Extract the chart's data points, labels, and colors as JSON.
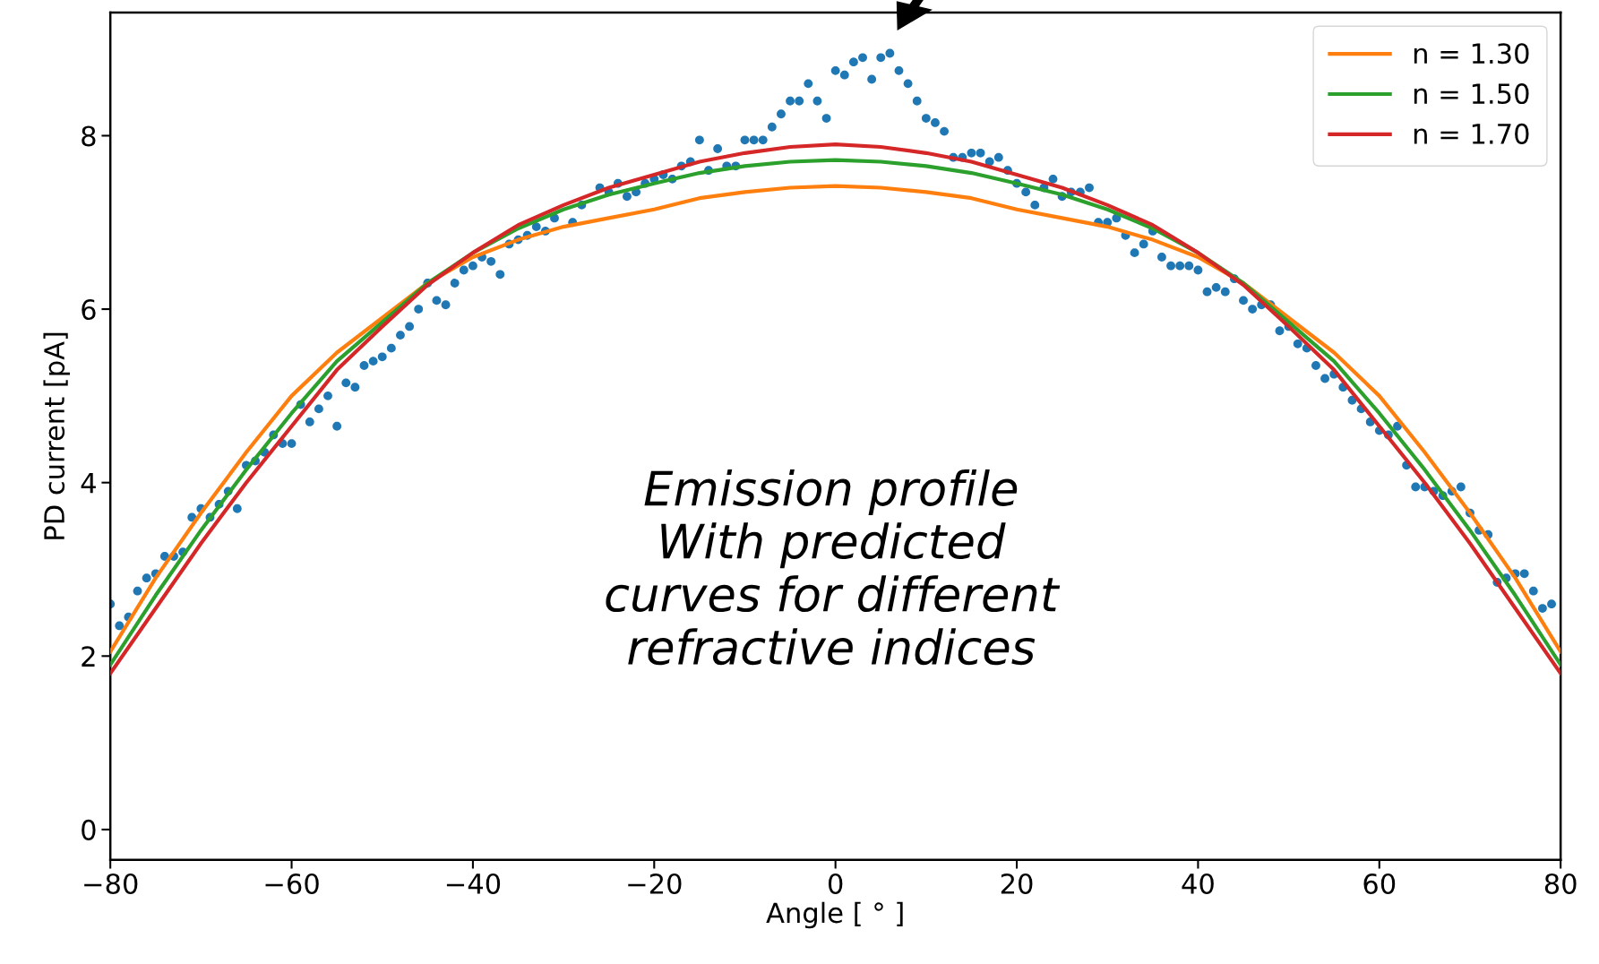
{
  "chart_data": {
    "type": "scatter",
    "xlabel": "Angle [ ° ]",
    "ylabel": "PD current [pA]",
    "xlim": [
      -80,
      80
    ],
    "ylim": [
      -0.35,
      9.42
    ],
    "xticks": [
      -80,
      -60,
      -40,
      -20,
      0,
      20,
      40,
      60,
      80
    ],
    "yticks": [
      0,
      2,
      4,
      6,
      8
    ],
    "legend": "top right",
    "marker": "circle",
    "series": [
      {
        "color": "#1f77b4",
        "x": [
          -80,
          -79,
          -78,
          -77,
          -76,
          -75,
          -74,
          -73,
          -72,
          -71,
          -70,
          -69,
          -68,
          -67,
          -66,
          -65,
          -64,
          -63,
          -62,
          -61,
          -60,
          -59,
          -58,
          -57,
          -56,
          -55,
          -54,
          -53,
          -52,
          -51,
          -50,
          -49,
          -48,
          -47,
          -46,
          -45,
          -44,
          -43,
          -42,
          -41,
          -40,
          -39,
          -38,
          -37,
          -36,
          -35,
          -34,
          -33,
          -32,
          -31,
          -29,
          -28,
          -26,
          -25,
          -24,
          -23,
          -22,
          -21,
          -20,
          -19,
          -18,
          -17,
          -16,
          -15,
          -14,
          -13,
          -12,
          -11,
          -10,
          -9,
          -8,
          -7,
          -6,
          -5,
          -4,
          -3,
          -2,
          -1,
          0,
          1,
          2,
          3,
          4,
          5,
          6,
          7,
          8,
          9,
          10,
          11,
          12,
          13,
          14,
          15,
          16,
          17,
          18,
          19,
          20,
          21,
          22,
          23,
          24,
          25,
          26,
          27,
          28,
          29,
          30,
          31,
          32,
          33,
          34,
          35,
          36,
          37,
          38,
          39,
          40,
          41,
          42,
          43,
          44,
          45,
          46,
          47,
          48,
          49,
          50,
          51,
          52,
          53,
          54,
          55,
          56,
          57,
          58,
          59,
          60,
          61,
          62,
          63,
          64,
          65,
          66,
          67,
          68,
          69,
          70,
          71,
          72,
          73,
          74,
          75,
          76,
          77,
          78,
          79
        ],
        "values": [
          2.6,
          2.35,
          2.45,
          2.75,
          2.9,
          2.95,
          3.15,
          3.15,
          3.2,
          3.6,
          3.7,
          3.6,
          3.75,
          3.9,
          3.7,
          4.2,
          4.25,
          4.35,
          4.55,
          4.45,
          4.45,
          4.9,
          4.7,
          4.85,
          5.0,
          4.65,
          5.15,
          5.1,
          5.35,
          5.4,
          5.45,
          5.55,
          5.7,
          5.8,
          6.0,
          6.3,
          6.1,
          6.05,
          6.3,
          6.45,
          6.5,
          6.6,
          6.55,
          6.4,
          6.75,
          6.8,
          6.85,
          6.95,
          6.9,
          7.05,
          7.0,
          7.2,
          7.4,
          7.35,
          7.45,
          7.3,
          7.35,
          7.45,
          7.5,
          7.55,
          7.5,
          7.65,
          7.7,
          7.95,
          7.6,
          7.85,
          7.65,
          7.65,
          7.95,
          7.95,
          7.95,
          8.1,
          8.25,
          8.4,
          8.4,
          8.6,
          8.4,
          8.2,
          8.75,
          8.7,
          8.85,
          8.9,
          8.65,
          8.9,
          8.95,
          8.75,
          8.6,
          8.4,
          8.2,
          8.15,
          8.05,
          7.75,
          7.75,
          7.8,
          7.8,
          7.7,
          7.75,
          7.6,
          7.45,
          7.35,
          7.2,
          7.4,
          7.5,
          7.3,
          7.35,
          7.35,
          7.4,
          7.0,
          7.0,
          7.05,
          6.85,
          6.65,
          6.75,
          6.9,
          6.6,
          6.5,
          6.5,
          6.5,
          6.45,
          6.2,
          6.25,
          6.2,
          6.35,
          6.1,
          6.0,
          6.05,
          6.05,
          5.75,
          5.8,
          5.6,
          5.55,
          5.35,
          5.2,
          5.25,
          5.1,
          4.95,
          4.85,
          4.7,
          4.6,
          4.55,
          4.65,
          4.2,
          3.95,
          3.95,
          3.9,
          3.85,
          3.9,
          3.95,
          3.65,
          3.45,
          3.4,
          2.85,
          2.9,
          2.95,
          2.95,
          2.75,
          2.55,
          2.6
        ]
      },
      {
        "type": "line",
        "name": "n = 1.30",
        "color": "#ff7f0e",
        "marker": "none",
        "x": [
          -80,
          -75,
          -70,
          -65,
          -60,
          -55,
          -50,
          -45,
          -40,
          -35,
          -30,
          -25,
          -20,
          -15,
          -10,
          -5,
          0,
          5,
          10,
          15,
          20,
          25,
          30,
          35,
          40,
          45,
          50,
          55,
          60,
          65,
          70,
          75,
          80
        ],
        "values": [
          2.05,
          2.9,
          3.65,
          4.35,
          5.0,
          5.5,
          5.9,
          6.3,
          6.6,
          6.8,
          6.95,
          7.05,
          7.15,
          7.28,
          7.35,
          7.4,
          7.42,
          7.4,
          7.35,
          7.28,
          7.15,
          7.05,
          6.95,
          6.8,
          6.6,
          6.3,
          5.9,
          5.5,
          5.0,
          4.35,
          3.65,
          2.9,
          2.05
        ]
      },
      {
        "type": "line",
        "name": "n = 1.50",
        "color": "#2ca02c",
        "marker": "none",
        "x": [
          -80,
          -75,
          -70,
          -65,
          -60,
          -55,
          -50,
          -45,
          -40,
          -35,
          -30,
          -25,
          -20,
          -15,
          -10,
          -5,
          0,
          5,
          10,
          15,
          20,
          25,
          30,
          35,
          40,
          45,
          50,
          55,
          60,
          65,
          70,
          75,
          80
        ],
        "values": [
          1.9,
          2.7,
          3.45,
          4.15,
          4.8,
          5.4,
          5.85,
          6.3,
          6.65,
          6.93,
          7.15,
          7.32,
          7.45,
          7.57,
          7.65,
          7.7,
          7.72,
          7.7,
          7.65,
          7.57,
          7.45,
          7.32,
          7.15,
          6.93,
          6.65,
          6.3,
          5.85,
          5.4,
          4.8,
          4.15,
          3.45,
          2.7,
          1.9
        ]
      },
      {
        "type": "line",
        "name": "n = 1.70",
        "color": "#d62728",
        "marker": "none",
        "x": [
          -80,
          -75,
          -70,
          -65,
          -60,
          -55,
          -50,
          -45,
          -40,
          -35,
          -30,
          -25,
          -20,
          -15,
          -10,
          -5,
          0,
          5,
          10,
          15,
          20,
          25,
          30,
          35,
          40,
          45,
          50,
          55,
          60,
          65,
          70,
          75,
          80
        ],
        "values": [
          1.8,
          2.55,
          3.3,
          4.0,
          4.65,
          5.3,
          5.8,
          6.28,
          6.65,
          6.97,
          7.2,
          7.4,
          7.55,
          7.7,
          7.8,
          7.87,
          7.9,
          7.87,
          7.8,
          7.7,
          7.55,
          7.4,
          7.2,
          6.97,
          6.65,
          6.28,
          5.8,
          5.3,
          4.65,
          4.0,
          3.3,
          2.55,
          1.8
        ]
      }
    ],
    "annotations": [
      "Emission profile\nWith predicted\ncurves for different\nrefractive indices"
    ]
  }
}
